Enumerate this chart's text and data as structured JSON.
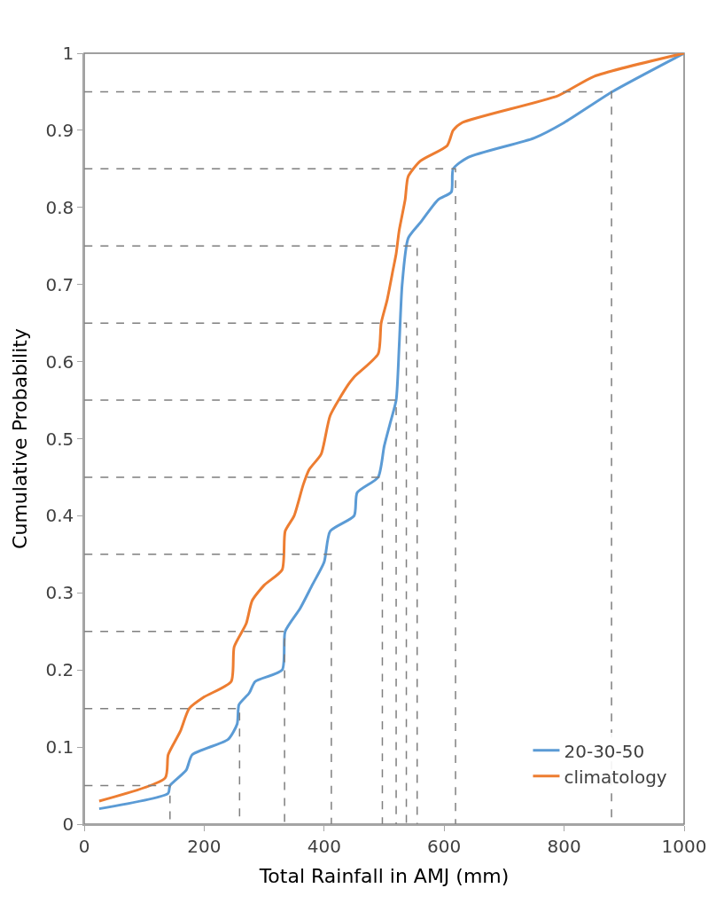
{
  "chart_data": {
    "type": "line",
    "xlabel": "Total Rainfall in AMJ (mm)",
    "ylabel": "Cumulative Probability",
    "xlim": [
      0,
      1000
    ],
    "xticks": [
      0,
      200,
      400,
      600,
      800,
      1000
    ],
    "ylim": [
      0,
      1
    ],
    "yticks": [
      0,
      0.1,
      0.2,
      0.3,
      0.4,
      0.5,
      0.6,
      0.7,
      0.8,
      0.9,
      1
    ],
    "grid": false,
    "legend": "bottom right",
    "marker": "none",
    "series": [
      {
        "name": "20-30-50",
        "color": "#5b9bd5",
        "x": [
          25,
          140,
          143,
          170,
          180,
          240,
          255,
          258,
          275,
          285,
          330,
          335,
          360,
          380,
          400,
          410,
          450,
          455,
          490,
          500,
          510,
          520,
          525,
          530,
          540,
          560,
          590,
          612,
          615,
          640,
          750,
          800,
          880,
          1000
        ],
        "values": [
          0.02,
          0.04,
          0.05,
          0.07,
          0.09,
          0.11,
          0.13,
          0.155,
          0.17,
          0.185,
          0.2,
          0.25,
          0.28,
          0.31,
          0.34,
          0.38,
          0.4,
          0.43,
          0.45,
          0.49,
          0.52,
          0.55,
          0.62,
          0.7,
          0.76,
          0.78,
          0.81,
          0.82,
          0.85,
          0.865,
          0.89,
          0.91,
          0.95,
          1.0
        ]
      },
      {
        "name": "climatology",
        "color": "#ed7d31",
        "x": [
          25,
          135,
          140,
          160,
          175,
          200,
          245,
          250,
          270,
          280,
          300,
          330,
          335,
          350,
          365,
          375,
          395,
          410,
          440,
          450,
          490,
          495,
          505,
          515,
          520,
          525,
          535,
          540,
          560,
          605,
          615,
          630,
          790,
          850,
          1000
        ],
        "values": [
          0.03,
          0.06,
          0.09,
          0.12,
          0.15,
          0.165,
          0.185,
          0.23,
          0.26,
          0.29,
          0.31,
          0.33,
          0.38,
          0.4,
          0.44,
          0.46,
          0.48,
          0.53,
          0.57,
          0.58,
          0.61,
          0.65,
          0.68,
          0.72,
          0.74,
          0.77,
          0.81,
          0.84,
          0.86,
          0.88,
          0.9,
          0.91,
          0.945,
          0.97,
          1.0
        ]
      },
      {
        "color": "#7f7f7f",
        "line_style": "dashed",
        "x": [
          0,
          143,
          143
        ],
        "values": [
          0.05,
          0.05,
          0
        ]
      },
      {
        "color": "#7f7f7f",
        "line_style": "dashed",
        "x": [
          0,
          259,
          259
        ],
        "values": [
          0.15,
          0.15,
          0
        ]
      },
      {
        "color": "#7f7f7f",
        "line_style": "dashed",
        "x": [
          0,
          334,
          334
        ],
        "values": [
          0.25,
          0.25,
          0
        ]
      },
      {
        "color": "#7f7f7f",
        "line_style": "dashed",
        "x": [
          0,
          412,
          412
        ],
        "values": [
          0.35,
          0.35,
          0
        ]
      },
      {
        "color": "#7f7f7f",
        "line_style": "dashed",
        "x": [
          0,
          497,
          497
        ],
        "values": [
          0.45,
          0.45,
          0
        ]
      },
      {
        "color": "#7f7f7f",
        "line_style": "dashed",
        "x": [
          0,
          520,
          520
        ],
        "values": [
          0.55,
          0.55,
          0
        ]
      },
      {
        "color": "#7f7f7f",
        "line_style": "dashed",
        "x": [
          0,
          537,
          537
        ],
        "values": [
          0.65,
          0.65,
          0
        ]
      },
      {
        "color": "#7f7f7f",
        "line_style": "dashed",
        "x": [
          0,
          555,
          555
        ],
        "values": [
          0.75,
          0.75,
          0
        ]
      },
      {
        "color": "#7f7f7f",
        "line_style": "dashed",
        "x": [
          0,
          619,
          619
        ],
        "values": [
          0.85,
          0.85,
          0
        ]
      },
      {
        "color": "#7f7f7f",
        "line_style": "dashed",
        "x": [
          0,
          879,
          879
        ],
        "values": [
          0.95,
          0.95,
          0
        ]
      }
    ]
  }
}
